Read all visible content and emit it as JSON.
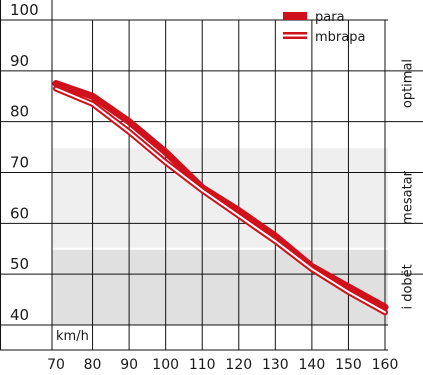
{
  "chart_data": {
    "type": "line",
    "x_unit": "km/h",
    "x": [
      70,
      80,
      90,
      100,
      110,
      120,
      130,
      140,
      150,
      160
    ],
    "xlim": [
      70,
      160
    ],
    "ylim": [
      40,
      100
    ],
    "y_ticks": [
      100,
      90,
      80,
      70,
      60,
      50,
      40
    ],
    "grid": true,
    "legend_position": "top-right",
    "series": [
      {
        "name": "para",
        "style": "solid",
        "values": [
          87.5,
          85,
          80,
          74,
          67,
          62.5,
          57.5,
          51.5,
          47.5,
          43.5
        ]
      },
      {
        "name": "mbrapa",
        "style": "double",
        "values": [
          86.5,
          83.5,
          78,
          72,
          66.5,
          61.5,
          56.5,
          51,
          46.5,
          42.5
        ]
      }
    ],
    "zones": [
      {
        "label": "optimal",
        "from": 75,
        "to": 100,
        "fill": "#ffffff"
      },
      {
        "label": "mesatar",
        "from": 55,
        "to": 75,
        "fill": "#efefef"
      },
      {
        "label": "i dobët",
        "from": 40,
        "to": 55,
        "fill": "#e0e0e0"
      }
    ],
    "colors": {
      "series": "#d0101a",
      "grid": "#111111",
      "zone_divider": "#ffffff"
    }
  }
}
